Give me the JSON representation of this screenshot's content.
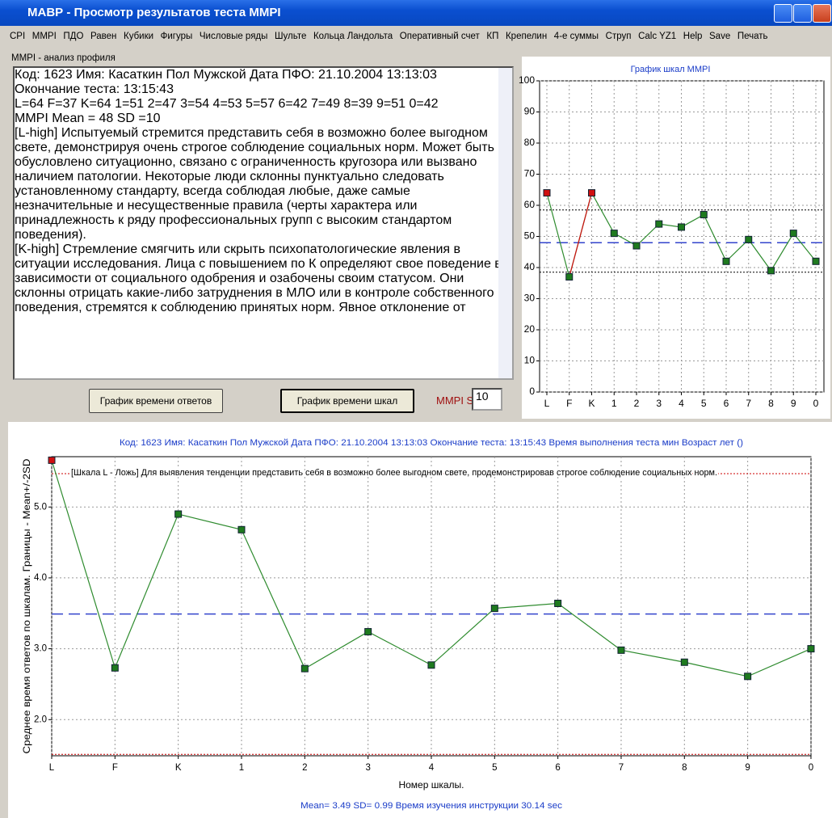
{
  "window": {
    "title": "МАВР - Просмотр результатов теста MMPI"
  },
  "menu": [
    "CPI",
    "MMPI",
    "ПДО",
    "Равен",
    "Кубики",
    "Фигуры",
    "Числовые ряды",
    "Шульте",
    "Кольца Ландольта",
    "Оперативный счет",
    "КП",
    "Крепелин",
    "4-е суммы",
    "Струп",
    "Calc YZ1",
    "Help",
    "Save",
    "Печать"
  ],
  "profile_panel": {
    "label": "MMPI - анализ профиля",
    "blocks": [
      [
        "Код: 1623  Имя: Касаткин  Пол Мужской  Дата ПФО: 21.10.2004 13:13:03",
        "Окончание теста: 13:15:43",
        "L=64 F=37 K=64 1=51 2=47 3=54 4=53 5=57 6=42 7=49 8=39 9=51 0=42",
        "MMPI Mean = 48    SD =10",
        "[L-high] Испытуемый стремится представить себя в возможно более выгодном",
        "свете, демонстрируя очень строгое соблюдение социальных норм. Может быть",
        "обусловлено ситуационно, связано с ограниченность кругозора или вызвано",
        "наличием патологии. Некоторые люди склонны пунктуально следовать",
        "установленному стандарту, всегда соблюдая любые, даже самые",
        "незначительные и несущественные правила (черты характера или",
        "принадлежность к ряду профессиональных групп с высоким стандартом",
        "поведения)."
      ],
      [
        "[K-high] Стремление смягчить или скрыть психопатологические явления в",
        "ситуации исследования. Лица с повышением по К определяют свое поведение в",
        "зависимости от социального одобрения и озабочены своим статусом. Они",
        "склонны отрицать какие-либо затруднения в МЛО или в контроле собственного",
        "поведения, стремятся к соблюдению принятых норм. Явное отклонение от"
      ]
    ]
  },
  "buttons": [
    "График времени ответов",
    "График времени шкал"
  ],
  "sd": {
    "label": "MMPI SD",
    "value": 10
  },
  "chart_data": [
    {
      "type": "line",
      "title": "График шкал MMPI",
      "categories": [
        "L",
        "F",
        "K",
        "1",
        "2",
        "3",
        "4",
        "5",
        "6",
        "7",
        "8",
        "9",
        "0"
      ],
      "series": [
        {
          "color": "#2e8b2e",
          "values": [
            64,
            37,
            64,
            51,
            47,
            54,
            53,
            57,
            42,
            49,
            39,
            51,
            42
          ],
          "point_colors": [
            "#d01010",
            "#1e7a1e",
            "#d01010",
            "#1e7a1e",
            "#1e7a1e",
            "#1e7a1e",
            "#1e7a1e",
            "#1e7a1e",
            "#1e7a1e",
            "#1e7a1e",
            "#1e7a1e",
            "#1e7a1e",
            "#1e7a1e"
          ]
        }
      ],
      "ylim": [
        0,
        100
      ],
      "yticks": [
        0,
        10,
        20,
        30,
        40,
        50,
        60,
        70,
        80,
        90,
        100
      ],
      "grid": true,
      "mean_line": 48,
      "mean_color": "#3344cc",
      "bounds": [
        38.5,
        58.5
      ],
      "bounds_color": "#000000"
    },
    {
      "type": "line",
      "title": "Код: 1623  Имя: Касаткин  Пол Мужской  Дата ПФО: 21.10.2004 13:13:03 Окончание теста: 13:15:43 Время выполнения теста  мин Возраст  лет ()",
      "annotation": "[Шкала L - Ложь] Для выявления тенденции представить себя в возможно более выгодном свете, продемонстрировав строгое соблюдение социальных норм.",
      "xlabel": "Номер шкалы.",
      "ylabel": "Среднее время ответов по шкалам. Границы - Mean+/-2SD",
      "footer": "Mean= 3.49  SD= 0.99 Время изучения инструкции   30.14 sec",
      "categories": [
        "L",
        "F",
        "K",
        "1",
        "2",
        "3",
        "4",
        "5",
        "6",
        "7",
        "8",
        "9",
        "0"
      ],
      "series": [
        {
          "color": "#2e8b2e",
          "values": [
            5.66,
            2.73,
            4.9,
            4.68,
            2.72,
            3.24,
            2.77,
            3.57,
            3.64,
            2.98,
            2.81,
            2.61,
            3.0
          ],
          "point_colors": [
            "#d01010",
            "#1e7a1e",
            "#1e7a1e",
            "#1e7a1e",
            "#1e7a1e",
            "#1e7a1e",
            "#1e7a1e",
            "#1e7a1e",
            "#1e7a1e",
            "#1e7a1e",
            "#1e7a1e",
            "#1e7a1e",
            "#1e7a1e"
          ]
        }
      ],
      "ylim": [
        1.49,
        5.71
      ],
      "yticks": [
        {
          "value": 2,
          "label": "2.0"
        },
        {
          "value": 3,
          "label": "3.0"
        },
        {
          "value": 4,
          "label": "4.0"
        },
        {
          "value": 5,
          "label": "5.0"
        }
      ],
      "grid": true,
      "mean_line": 3.49,
      "mean_color": "#3344cc",
      "bounds": [
        1.51,
        5.47
      ],
      "bounds_color": "#cc0000"
    }
  ]
}
